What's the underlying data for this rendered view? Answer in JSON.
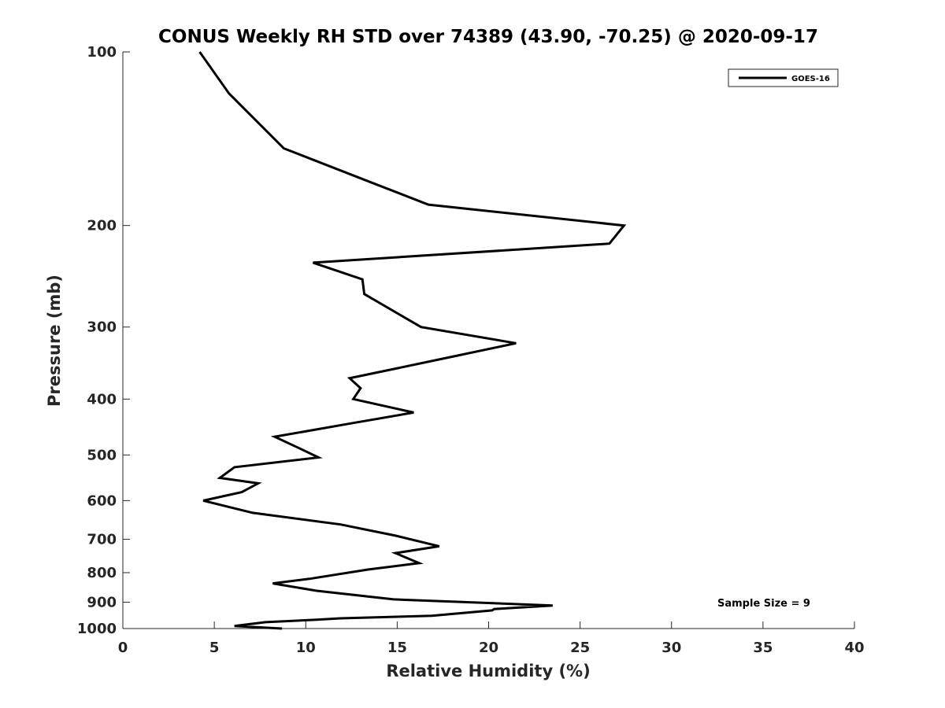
{
  "chart_data": {
    "type": "line",
    "title": "CONUS Weekly RH STD over 74389 (43.90, -70.25) @ 2020-09-17",
    "xlabel": "Relative Humidity (%)",
    "ylabel": "Pressure (mb)",
    "xlim": [
      0,
      40
    ],
    "ylim": [
      100,
      1000
    ],
    "y_scale": "log",
    "y_reversed": true,
    "x_ticks": [
      0,
      5,
      10,
      15,
      20,
      25,
      30,
      35,
      40
    ],
    "y_ticks": [
      100,
      200,
      300,
      400,
      500,
      600,
      700,
      800,
      900,
      1000
    ],
    "grid": false,
    "legend_position": "top-right",
    "series": [
      {
        "name": "GOES-16",
        "color": "#000000",
        "x": [
          4.2,
          5.8,
          8.8,
          13.5,
          16.7,
          27.4,
          26.6,
          10.4,
          13.1,
          13.2,
          16.3,
          21.5,
          17.2,
          12.4,
          13.0,
          12.6,
          15.9,
          12.6,
          8.3,
          9.6,
          10.7,
          6.1,
          5.3,
          7.4,
          6.5,
          4.4,
          7.1,
          11.9,
          14.9,
          17.3,
          14.9,
          16.2,
          13.4,
          10.2,
          8.2,
          10.6,
          14.8,
          23.5,
          20.3,
          20.2,
          16.9,
          11.9,
          10.6,
          7.8,
          6.1,
          8.7
        ],
        "y": [
          100,
          118,
          147,
          168,
          184,
          200,
          215,
          232,
          248,
          263,
          300,
          320,
          342,
          368,
          383,
          400,
          422,
          440,
          465,
          486,
          505,
          525,
          548,
          560,
          580,
          600,
          630,
          660,
          690,
          720,
          740,
          770,
          790,
          820,
          835,
          860,
          890,
          912,
          925,
          930,
          950,
          960,
          965,
          975,
          990,
          1000
        ]
      }
    ],
    "annotations": [
      "Sample Size = 9"
    ]
  }
}
